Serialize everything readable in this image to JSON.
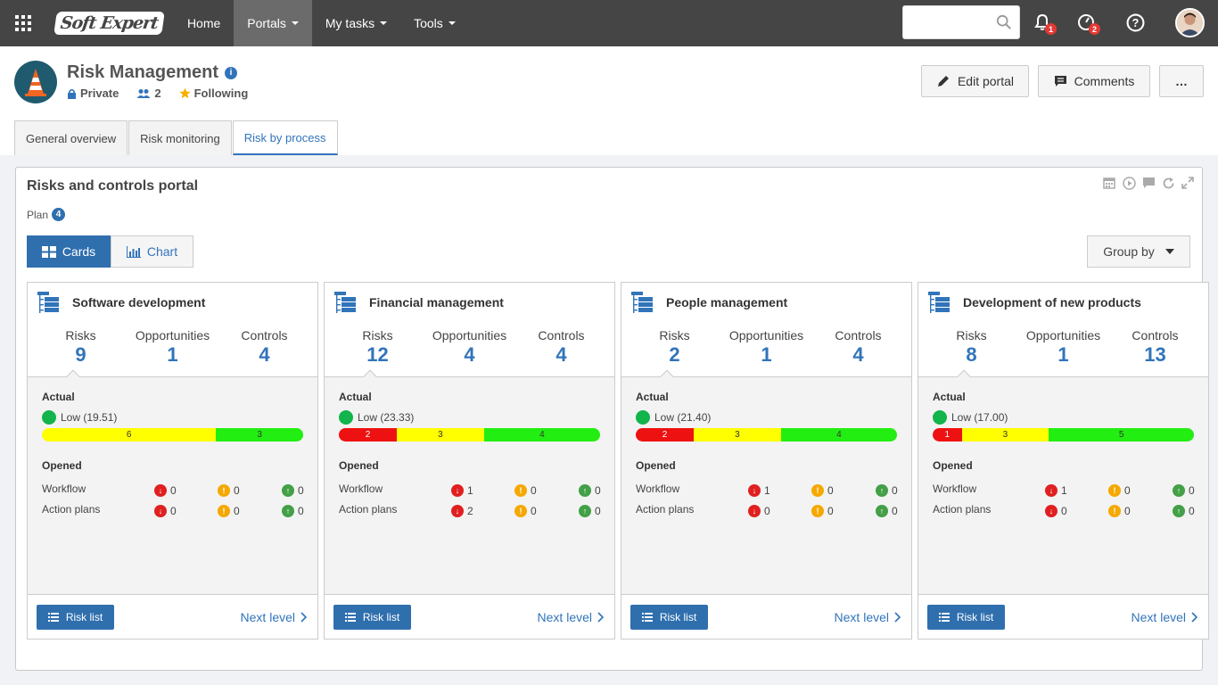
{
  "topbar": {
    "logo_text": "Soft Expert",
    "nav": [
      {
        "label": "Home",
        "has_menu": false,
        "active": false
      },
      {
        "label": "Portals",
        "has_menu": true,
        "active": true
      },
      {
        "label": "My tasks",
        "has_menu": true,
        "active": false
      },
      {
        "label": "Tools",
        "has_menu": true,
        "active": false
      }
    ],
    "search_placeholder": "",
    "notifications_count": "1",
    "tasks_count": "2"
  },
  "header": {
    "title": "Risk Management",
    "privacy": "Private",
    "members": "2",
    "following": "Following",
    "edit_label": "Edit portal",
    "comments_label": "Comments",
    "more_label": "…"
  },
  "tabs": [
    {
      "label": "General overview",
      "active": false
    },
    {
      "label": "Risk monitoring",
      "active": false
    },
    {
      "label": "Risk by process",
      "active": true
    }
  ],
  "panel": {
    "title": "Risks and controls portal",
    "plan_label": "Plan",
    "plan_count": "4",
    "cards_label": "Cards",
    "chart_label": "Chart",
    "group_by_label": "Group by"
  },
  "card_labels": {
    "risks": "Risks",
    "opportunities": "Opportunities",
    "controls": "Controls",
    "actual": "Actual",
    "opened": "Opened",
    "workflow": "Workflow",
    "action_plans": "Action plans",
    "risk_list": "Risk list",
    "next_level": "Next level"
  },
  "cards": [
    {
      "title": "Software development",
      "risks": "9",
      "opportunities": "1",
      "controls": "4",
      "level": "Low (19.51)",
      "bar": {
        "red": 0,
        "yellow": 6,
        "green": 3
      },
      "workflow": [
        "0",
        "0",
        "0"
      ],
      "action_plans": [
        "0",
        "0",
        "0"
      ]
    },
    {
      "title": "Financial management",
      "risks": "12",
      "opportunities": "4",
      "controls": "4",
      "level": "Low (23.33)",
      "bar": {
        "red": 2,
        "yellow": 3,
        "green": 4
      },
      "workflow": [
        "1",
        "0",
        "0"
      ],
      "action_plans": [
        "2",
        "0",
        "0"
      ]
    },
    {
      "title": "People management",
      "risks": "2",
      "opportunities": "1",
      "controls": "4",
      "level": "Low (21.40)",
      "bar": {
        "red": 2,
        "yellow": 3,
        "green": 4
      },
      "workflow": [
        "1",
        "0",
        "0"
      ],
      "action_plans": [
        "0",
        "0",
        "0"
      ]
    },
    {
      "title": "Development of new products",
      "risks": "8",
      "opportunities": "1",
      "controls": "13",
      "level": "Low (17.00)",
      "bar": {
        "red": 1,
        "yellow": 3,
        "green": 5
      },
      "workflow": [
        "1",
        "0",
        "0"
      ],
      "action_plans": [
        "0",
        "0",
        "0"
      ]
    }
  ],
  "colors": {
    "accent": "#2f6fae",
    "link": "#3174ba",
    "topbar": "#454545",
    "red": "#ee1111",
    "yellow": "#ffff00",
    "green": "#22ee11"
  }
}
